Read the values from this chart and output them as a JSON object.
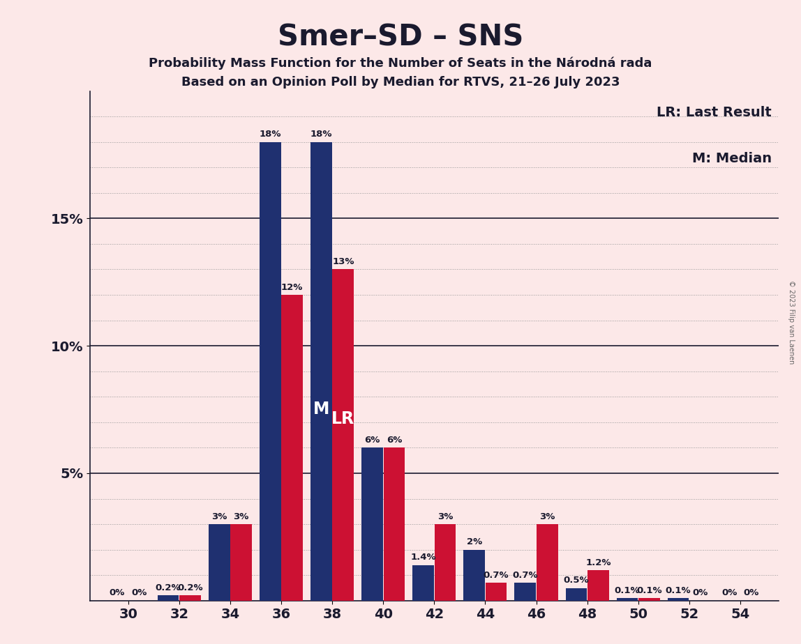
{
  "title": "Smer–SD – SNS",
  "subtitle1": "Probability Mass Function for the Number of Seats in the Národná rada",
  "subtitle2": "Based on an Opinion Poll by Median for RTVS, 21–26 July 2023",
  "copyright": "© 2023 Filip van Laenen",
  "legend_lr": "LR: Last Result",
  "legend_m": "M: Median",
  "seats": [
    30,
    32,
    34,
    36,
    38,
    40,
    42,
    44,
    46,
    48,
    50,
    52,
    54
  ],
  "pmf_values": [
    0.0,
    0.2,
    3.0,
    18.0,
    18.0,
    6.0,
    1.4,
    2.0,
    0.7,
    0.5,
    0.1,
    0.1,
    0.0
  ],
  "lr_values": [
    0.0,
    0.2,
    3.0,
    12.0,
    13.0,
    6.0,
    3.0,
    0.7,
    3.0,
    1.2,
    0.1,
    0.0,
    0.0
  ],
  "pmf_labels": [
    "0%",
    "0.2%",
    "3%",
    "18%",
    "18%",
    "6%",
    "1.4%",
    "2%",
    "0.7%",
    "0.5%",
    "0.1%",
    "0.1%",
    "0%"
  ],
  "lr_labels": [
    "0%",
    "0.2%",
    "3%",
    "12%",
    "13%",
    "6%",
    "3%",
    "0.7%",
    "3%",
    "1.2%",
    "0.1%",
    "0%",
    "0%"
  ],
  "median_seat": 38,
  "lr_seat": 38,
  "pmf_color": "#1f3070",
  "lr_color": "#cc1133",
  "background_color": "#fce8e8",
  "ylim": [
    0,
    20
  ],
  "bar_width": 0.42,
  "bar_gap": 0.01,
  "label_fontsize": 9.5,
  "tick_fontsize": 14,
  "title_fontsize": 30,
  "subtitle_fontsize": 13,
  "legend_fontsize": 14,
  "mlr_fontsize": 17
}
